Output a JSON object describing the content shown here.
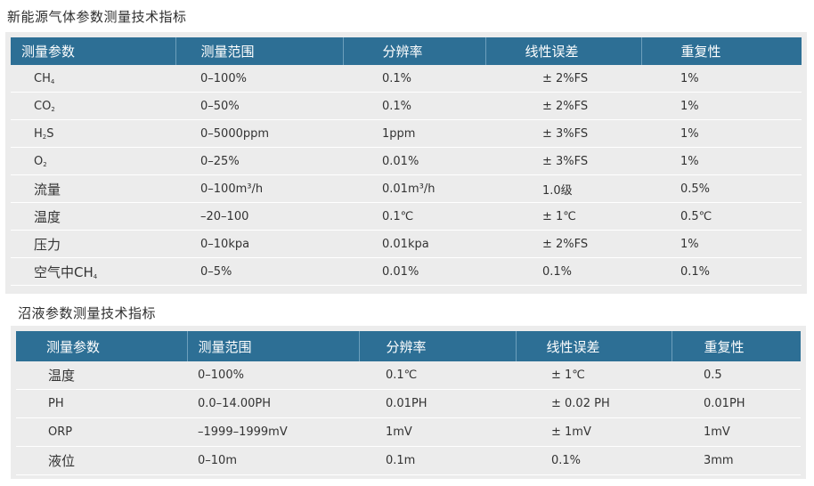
{
  "section1": {
    "title": "新能源气体参数测量技术指标",
    "headers": [
      "测量参数",
      "测量范围",
      "分辨率",
      "线性误差",
      "重复性"
    ],
    "rows": [
      {
        "param_main": "CH",
        "param_sub": "4",
        "param_tail": "",
        "range": "0–100%",
        "resolution": "0.1%",
        "error": "± 2%FS",
        "repeat": "1%"
      },
      {
        "param_main": "CO",
        "param_sub": "2",
        "param_tail": "",
        "range": "0–50%",
        "resolution": "0.1%",
        "error": "± 2%FS",
        "repeat": "1%"
      },
      {
        "param_main": "H",
        "param_sub": "2",
        "param_tail": "S",
        "range": "0–5000ppm",
        "resolution": "1ppm",
        "error": "± 3%FS",
        "repeat": "1%"
      },
      {
        "param_main": "O",
        "param_sub": "2",
        "param_tail": "",
        "range": "0–25%",
        "resolution": "0.01%",
        "error": "± 3%FS",
        "repeat": "1%"
      },
      {
        "param_main": "流量",
        "param_sub": "",
        "param_tail": "",
        "range": "0–100m³/h",
        "resolution": "0.01m³/h",
        "error": "1.0级",
        "repeat": "0.5%"
      },
      {
        "param_main": "温度",
        "param_sub": "",
        "param_tail": "",
        "range": "–20–100",
        "resolution": "0.1℃",
        "error": "± 1℃",
        "repeat": "0.5℃"
      },
      {
        "param_main": "压力",
        "param_sub": "",
        "param_tail": "",
        "range": "0–10kpa",
        "resolution": "0.01kpa",
        "error": "± 2%FS",
        "repeat": "1%"
      },
      {
        "param_main": "空气中CH",
        "param_sub": "4",
        "param_tail": "",
        "range": "0–5%",
        "resolution": "0.01%",
        "error": "0.1%",
        "repeat": "0.1%"
      }
    ]
  },
  "section2": {
    "title": "沼液参数测量技术指标",
    "headers": [
      "测量参数",
      "测量范围",
      "分辨率",
      "线性误差",
      "重复性"
    ],
    "rows": [
      {
        "param": "温度",
        "range": "0–100%",
        "resolution": "0.1℃",
        "error": "± 1℃",
        "repeat": "0.5"
      },
      {
        "param": "PH",
        "range": "0.0–14.00PH",
        "resolution": "0.01PH",
        "error": "± 0.02 PH",
        "repeat": "0.01PH"
      },
      {
        "param": "ORP",
        "range": "–1999–1999mV",
        "resolution": "1mV",
        "error": "± 1mV",
        "repeat": "1mV"
      },
      {
        "param": "液位",
        "range": "0–10m",
        "resolution": "0.1m",
        "error": "0.1%",
        "repeat": "3mm"
      }
    ]
  },
  "colors": {
    "header_bg": "#2d6f95",
    "panel_bg": "#ececec",
    "header_text": "#ffffff"
  }
}
